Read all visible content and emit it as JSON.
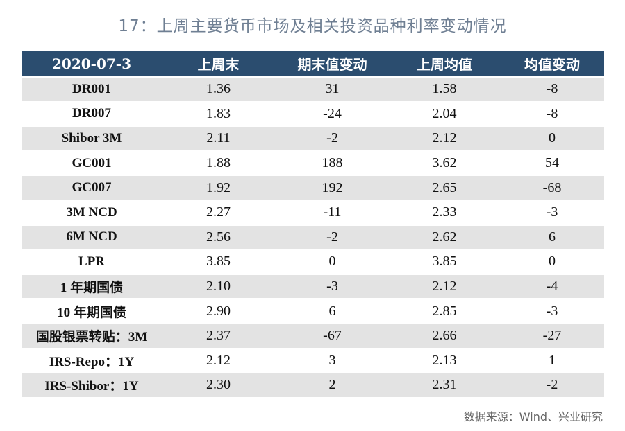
{
  "title": "17：上周主要货币市场及相关投资品种利率变动情况",
  "source": "数据来源：Wind、兴业研究",
  "chart_data": {
    "type": "table",
    "columns": [
      "2020-07-3",
      "上周末",
      "期末值变动",
      "上周均值",
      "均值变动"
    ],
    "rows": [
      [
        "DR001",
        "1.36",
        "31",
        "1.58",
        "-8"
      ],
      [
        "DR007",
        "1.83",
        "-24",
        "2.04",
        "-8"
      ],
      [
        "Shibor 3M",
        "2.11",
        "-2",
        "2.12",
        "0"
      ],
      [
        "GC001",
        "1.88",
        "188",
        "3.62",
        "54"
      ],
      [
        "GC007",
        "1.92",
        "192",
        "2.65",
        "-68"
      ],
      [
        "3M NCD",
        "2.27",
        "-11",
        "2.33",
        "-3"
      ],
      [
        "6M NCD",
        "2.56",
        "-2",
        "2.62",
        "6"
      ],
      [
        "LPR",
        "3.85",
        "0",
        "3.85",
        "0"
      ],
      [
        "1 年期国债",
        "2.10",
        "-3",
        "2.12",
        "-4"
      ],
      [
        "10 年期国债",
        "2.90",
        "6",
        "2.85",
        "-3"
      ],
      [
        "国股银票转贴：3M",
        "2.37",
        "-67",
        "2.66",
        "-27"
      ],
      [
        "IRS-Repo：1Y",
        "2.12",
        "3",
        "2.13",
        "1"
      ],
      [
        "IRS-Shibor：1Y",
        "2.30",
        "2",
        "2.31",
        "-2"
      ]
    ]
  },
  "colors": {
    "header_bg": "#2b4d6f",
    "stripe": "#e3e3e3",
    "title": "#6f7f93"
  }
}
